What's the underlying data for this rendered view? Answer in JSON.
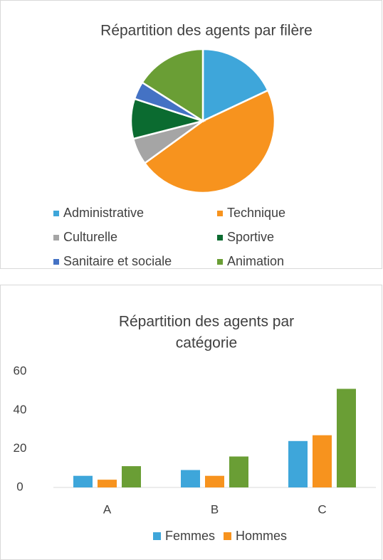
{
  "chart_data": [
    {
      "type": "pie",
      "title": "Répartition des agents par filère",
      "categories": [
        "Administrative",
        "Technique",
        "Culturelle",
        "Sportive",
        "Sanitaire et sociale",
        "Animation"
      ],
      "values": [
        18,
        47,
        6,
        9,
        4,
        16
      ],
      "colors": [
        "#3ea6da",
        "#f7931e",
        "#a5a5a5",
        "#0b6b30",
        "#4472c4",
        "#6a9e35"
      ],
      "legend": "bottom"
    },
    {
      "type": "bar",
      "title": [
        "Répartition des agents par",
        "catégorie"
      ],
      "categories": [
        "A",
        "B",
        "C"
      ],
      "series": [
        {
          "name": "Femmes",
          "color": "#3ea6da",
          "values": [
            6,
            9,
            24
          ]
        },
        {
          "name": "Hommes",
          "color": "#f7931e",
          "values": [
            4,
            6,
            27
          ]
        },
        {
          "color": "#6a9e35",
          "values": [
            11,
            16,
            51
          ]
        }
      ],
      "ylim": [
        0,
        60
      ],
      "yticks": [
        0,
        20,
        40,
        60
      ],
      "grid": false,
      "legend": "bottom"
    }
  ]
}
